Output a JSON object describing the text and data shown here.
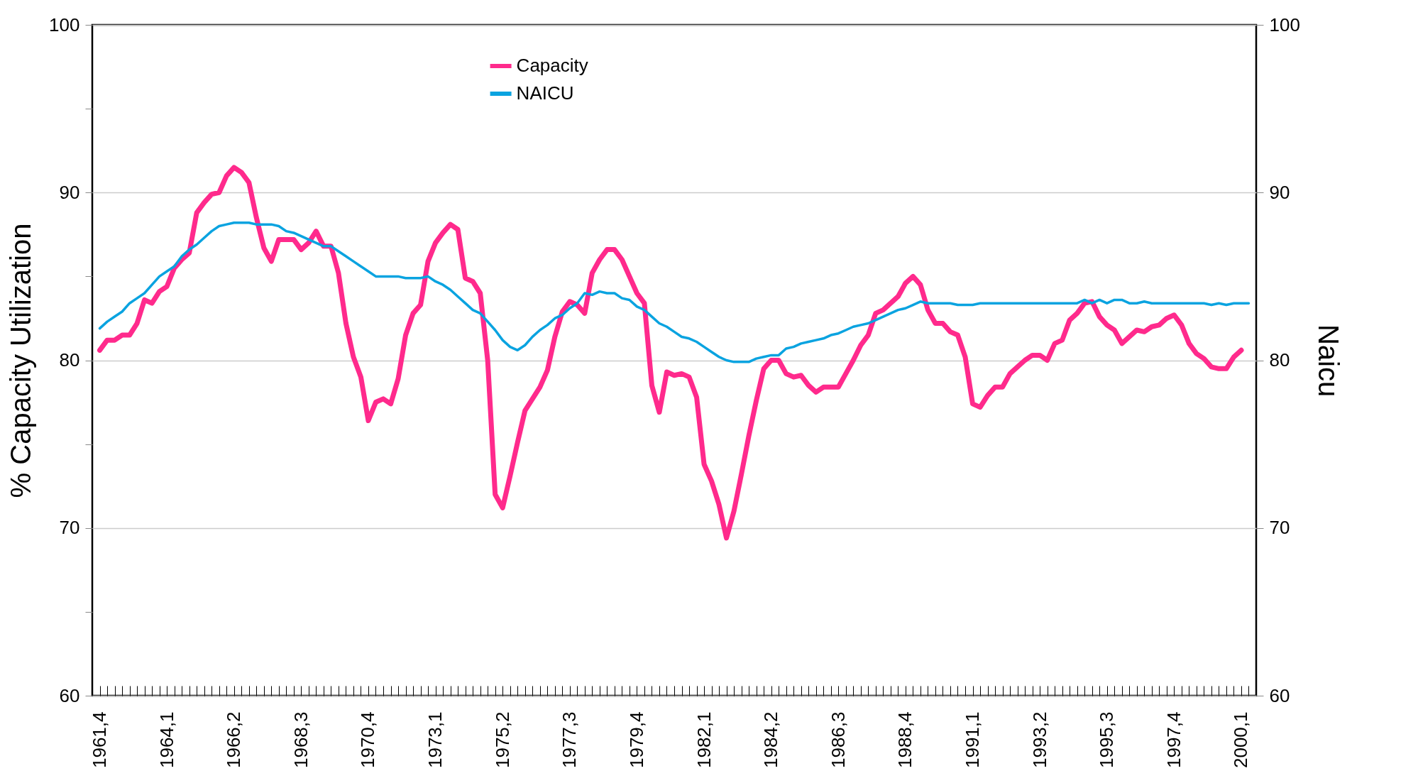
{
  "chart_data": {
    "type": "line",
    "ylabel": "% Capacity Utilization",
    "y2label": "Naicu",
    "categories": [
      "1961,4",
      null,
      null,
      null,
      null,
      null,
      null,
      null,
      null,
      "1964,1",
      null,
      null,
      null,
      null,
      null,
      null,
      null,
      null,
      "1966,2",
      null,
      null,
      null,
      null,
      null,
      null,
      null,
      null,
      "1968,3",
      null,
      null,
      null,
      null,
      null,
      null,
      null,
      null,
      "1970,4",
      null,
      null,
      null,
      null,
      null,
      null,
      null,
      null,
      "1973,1",
      null,
      null,
      null,
      null,
      null,
      null,
      null,
      null,
      "1975,2",
      null,
      null,
      null,
      null,
      null,
      null,
      null,
      null,
      "1977,3",
      null,
      null,
      null,
      null,
      null,
      null,
      null,
      null,
      "1979,4",
      null,
      null,
      null,
      null,
      null,
      null,
      null,
      null,
      "1982,1",
      null,
      null,
      null,
      null,
      null,
      null,
      null,
      null,
      "1984,2",
      null,
      null,
      null,
      null,
      null,
      null,
      null,
      null,
      "1986,3",
      null,
      null,
      null,
      null,
      null,
      null,
      null,
      null,
      "1988,4",
      null,
      null,
      null,
      null,
      null,
      null,
      null,
      null,
      "1991,1",
      null,
      null,
      null,
      null,
      null,
      null,
      null,
      null,
      "1993,2",
      null,
      null,
      null,
      null,
      null,
      null,
      null,
      null,
      "1995,3",
      null,
      null,
      null,
      null,
      null,
      null,
      null,
      null,
      "1997,4",
      null,
      null,
      null,
      null,
      null,
      null,
      null,
      null,
      "2000,1",
      null
    ],
    "series": [
      {
        "name": "Capacity",
        "color": "#ff2a8c",
        "values": [
          80.6,
          81.2,
          81.2,
          81.5,
          81.5,
          82.2,
          83.6,
          83.4,
          84.1,
          84.4,
          85.5,
          86.0,
          86.4,
          88.8,
          89.4,
          89.9,
          90.0,
          91.0,
          91.5,
          91.2,
          90.6,
          88.5,
          86.7,
          85.9,
          87.2,
          87.2,
          87.2,
          86.6,
          87.0,
          87.7,
          86.8,
          86.8,
          85.2,
          82.2,
          80.2,
          79.0,
          76.4,
          77.5,
          77.7,
          77.4,
          78.9,
          81.5,
          82.8,
          83.3,
          85.9,
          87.0,
          87.6,
          88.1,
          87.8,
          84.9,
          84.7,
          84.0,
          80.0,
          72.0,
          71.2,
          73.1,
          75.1,
          77.0,
          77.7,
          78.4,
          79.4,
          81.4,
          82.9,
          83.5,
          83.3,
          82.8,
          85.2,
          86.0,
          86.6,
          86.6,
          86.0,
          85.0,
          84.0,
          83.4,
          78.5,
          76.9,
          79.3,
          79.1,
          79.2,
          79.0,
          77.8,
          73.8,
          72.8,
          71.4,
          69.4,
          71.0,
          73.2,
          75.5,
          77.6,
          79.5,
          80.0,
          80.0,
          79.2,
          79.0,
          79.1,
          78.5,
          78.1,
          78.4,
          78.4,
          78.4,
          79.2,
          80.0,
          80.9,
          81.5,
          82.8,
          83.0,
          83.4,
          83.8,
          84.6,
          85.0,
          84.5,
          83.0,
          82.2,
          82.2,
          81.7,
          81.5,
          80.2,
          77.4,
          77.2,
          77.9,
          78.4,
          78.4,
          79.2,
          79.6,
          80.0,
          80.3,
          80.3,
          80.0,
          81.0,
          81.2,
          82.4,
          82.8,
          83.4,
          83.5,
          82.6,
          82.1,
          81.8,
          81.0,
          81.4,
          81.8,
          81.7,
          82.0,
          82.1,
          82.5,
          82.7,
          82.1,
          81.0,
          80.4,
          80.1,
          79.6,
          79.5,
          79.5,
          80.2,
          80.6,
          null
        ]
      },
      {
        "name": "NAICU",
        "color": "#0aa3e0",
        "axis": "y2",
        "values": [
          81.9,
          82.3,
          82.6,
          82.9,
          83.4,
          83.7,
          84.0,
          84.5,
          85.0,
          85.3,
          85.6,
          86.2,
          86.6,
          86.9,
          87.3,
          87.7,
          88.0,
          88.1,
          88.2,
          88.2,
          88.2,
          88.1,
          88.1,
          88.1,
          88.0,
          87.7,
          87.6,
          87.4,
          87.2,
          87.0,
          86.8,
          86.8,
          86.5,
          86.2,
          85.9,
          85.6,
          85.3,
          85.0,
          85.0,
          85.0,
          85.0,
          84.9,
          84.9,
          84.9,
          85.0,
          84.7,
          84.5,
          84.2,
          83.8,
          83.4,
          83.0,
          82.8,
          82.3,
          81.8,
          81.2,
          80.8,
          80.6,
          80.9,
          81.4,
          81.8,
          82.1,
          82.5,
          82.7,
          83.1,
          83.4,
          84.0,
          83.9,
          84.1,
          84.0,
          84.0,
          83.7,
          83.6,
          83.2,
          83.0,
          82.6,
          82.2,
          82.0,
          81.7,
          81.4,
          81.3,
          81.1,
          80.8,
          80.5,
          80.2,
          80.0,
          79.9,
          79.9,
          79.9,
          80.1,
          80.2,
          80.3,
          80.3,
          80.7,
          80.8,
          81.0,
          81.1,
          81.2,
          81.3,
          81.5,
          81.6,
          81.8,
          82.0,
          82.1,
          82.2,
          82.4,
          82.6,
          82.8,
          83.0,
          83.1,
          83.3,
          83.5,
          83.4,
          83.4,
          83.4,
          83.4,
          83.3,
          83.3,
          83.3,
          83.4,
          83.4,
          83.4,
          83.4,
          83.4,
          83.4,
          83.4,
          83.4,
          83.4,
          83.4,
          83.4,
          83.4,
          83.4,
          83.4,
          83.6,
          83.4,
          83.6,
          83.4,
          83.6,
          83.6,
          83.4,
          83.4,
          83.5,
          83.4,
          83.4,
          83.4,
          83.4,
          83.4,
          83.4,
          83.4,
          83.4,
          83.3,
          83.4,
          83.3,
          83.4,
          83.4,
          83.4
        ]
      }
    ],
    "ylim": [
      60,
      100
    ],
    "yticks": [
      60,
      {
        "value": 65,
        "label": null
      },
      70,
      {
        "value": 75,
        "label": null
      },
      80,
      {
        "value": 85,
        "label": null
      },
      90,
      {
        "value": 95,
        "label": null
      },
      100
    ],
    "y2lim": [
      60,
      100
    ],
    "y2ticks": [
      60,
      70,
      80,
      90,
      100
    ],
    "grid": "y",
    "legend": "top"
  }
}
